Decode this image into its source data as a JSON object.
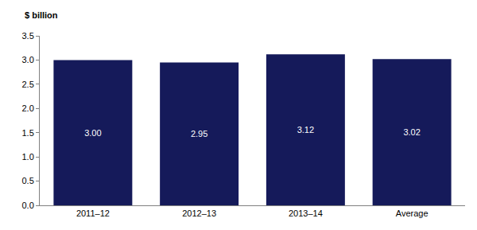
{
  "chart_data": {
    "type": "bar",
    "ylabel": "$ billion",
    "categories": [
      "2011–12",
      "2012–13",
      "2013–14",
      "Average"
    ],
    "values": [
      3.0,
      2.95,
      3.12,
      3.02
    ],
    "value_labels": [
      "3.00",
      "2.95",
      "3.12",
      "3.02"
    ],
    "color": "#151a5a",
    "ylim": [
      0,
      3.5
    ],
    "yticks": [
      {
        "value": 0,
        "label": "0.0"
      },
      0.5,
      {
        "value": 1,
        "label": "1.0"
      },
      1.5,
      {
        "value": 2,
        "label": "2.0"
      },
      2.5,
      {
        "value": 3,
        "label": "3.0"
      },
      3.5
    ],
    "grid": false,
    "data_labels": true
  }
}
